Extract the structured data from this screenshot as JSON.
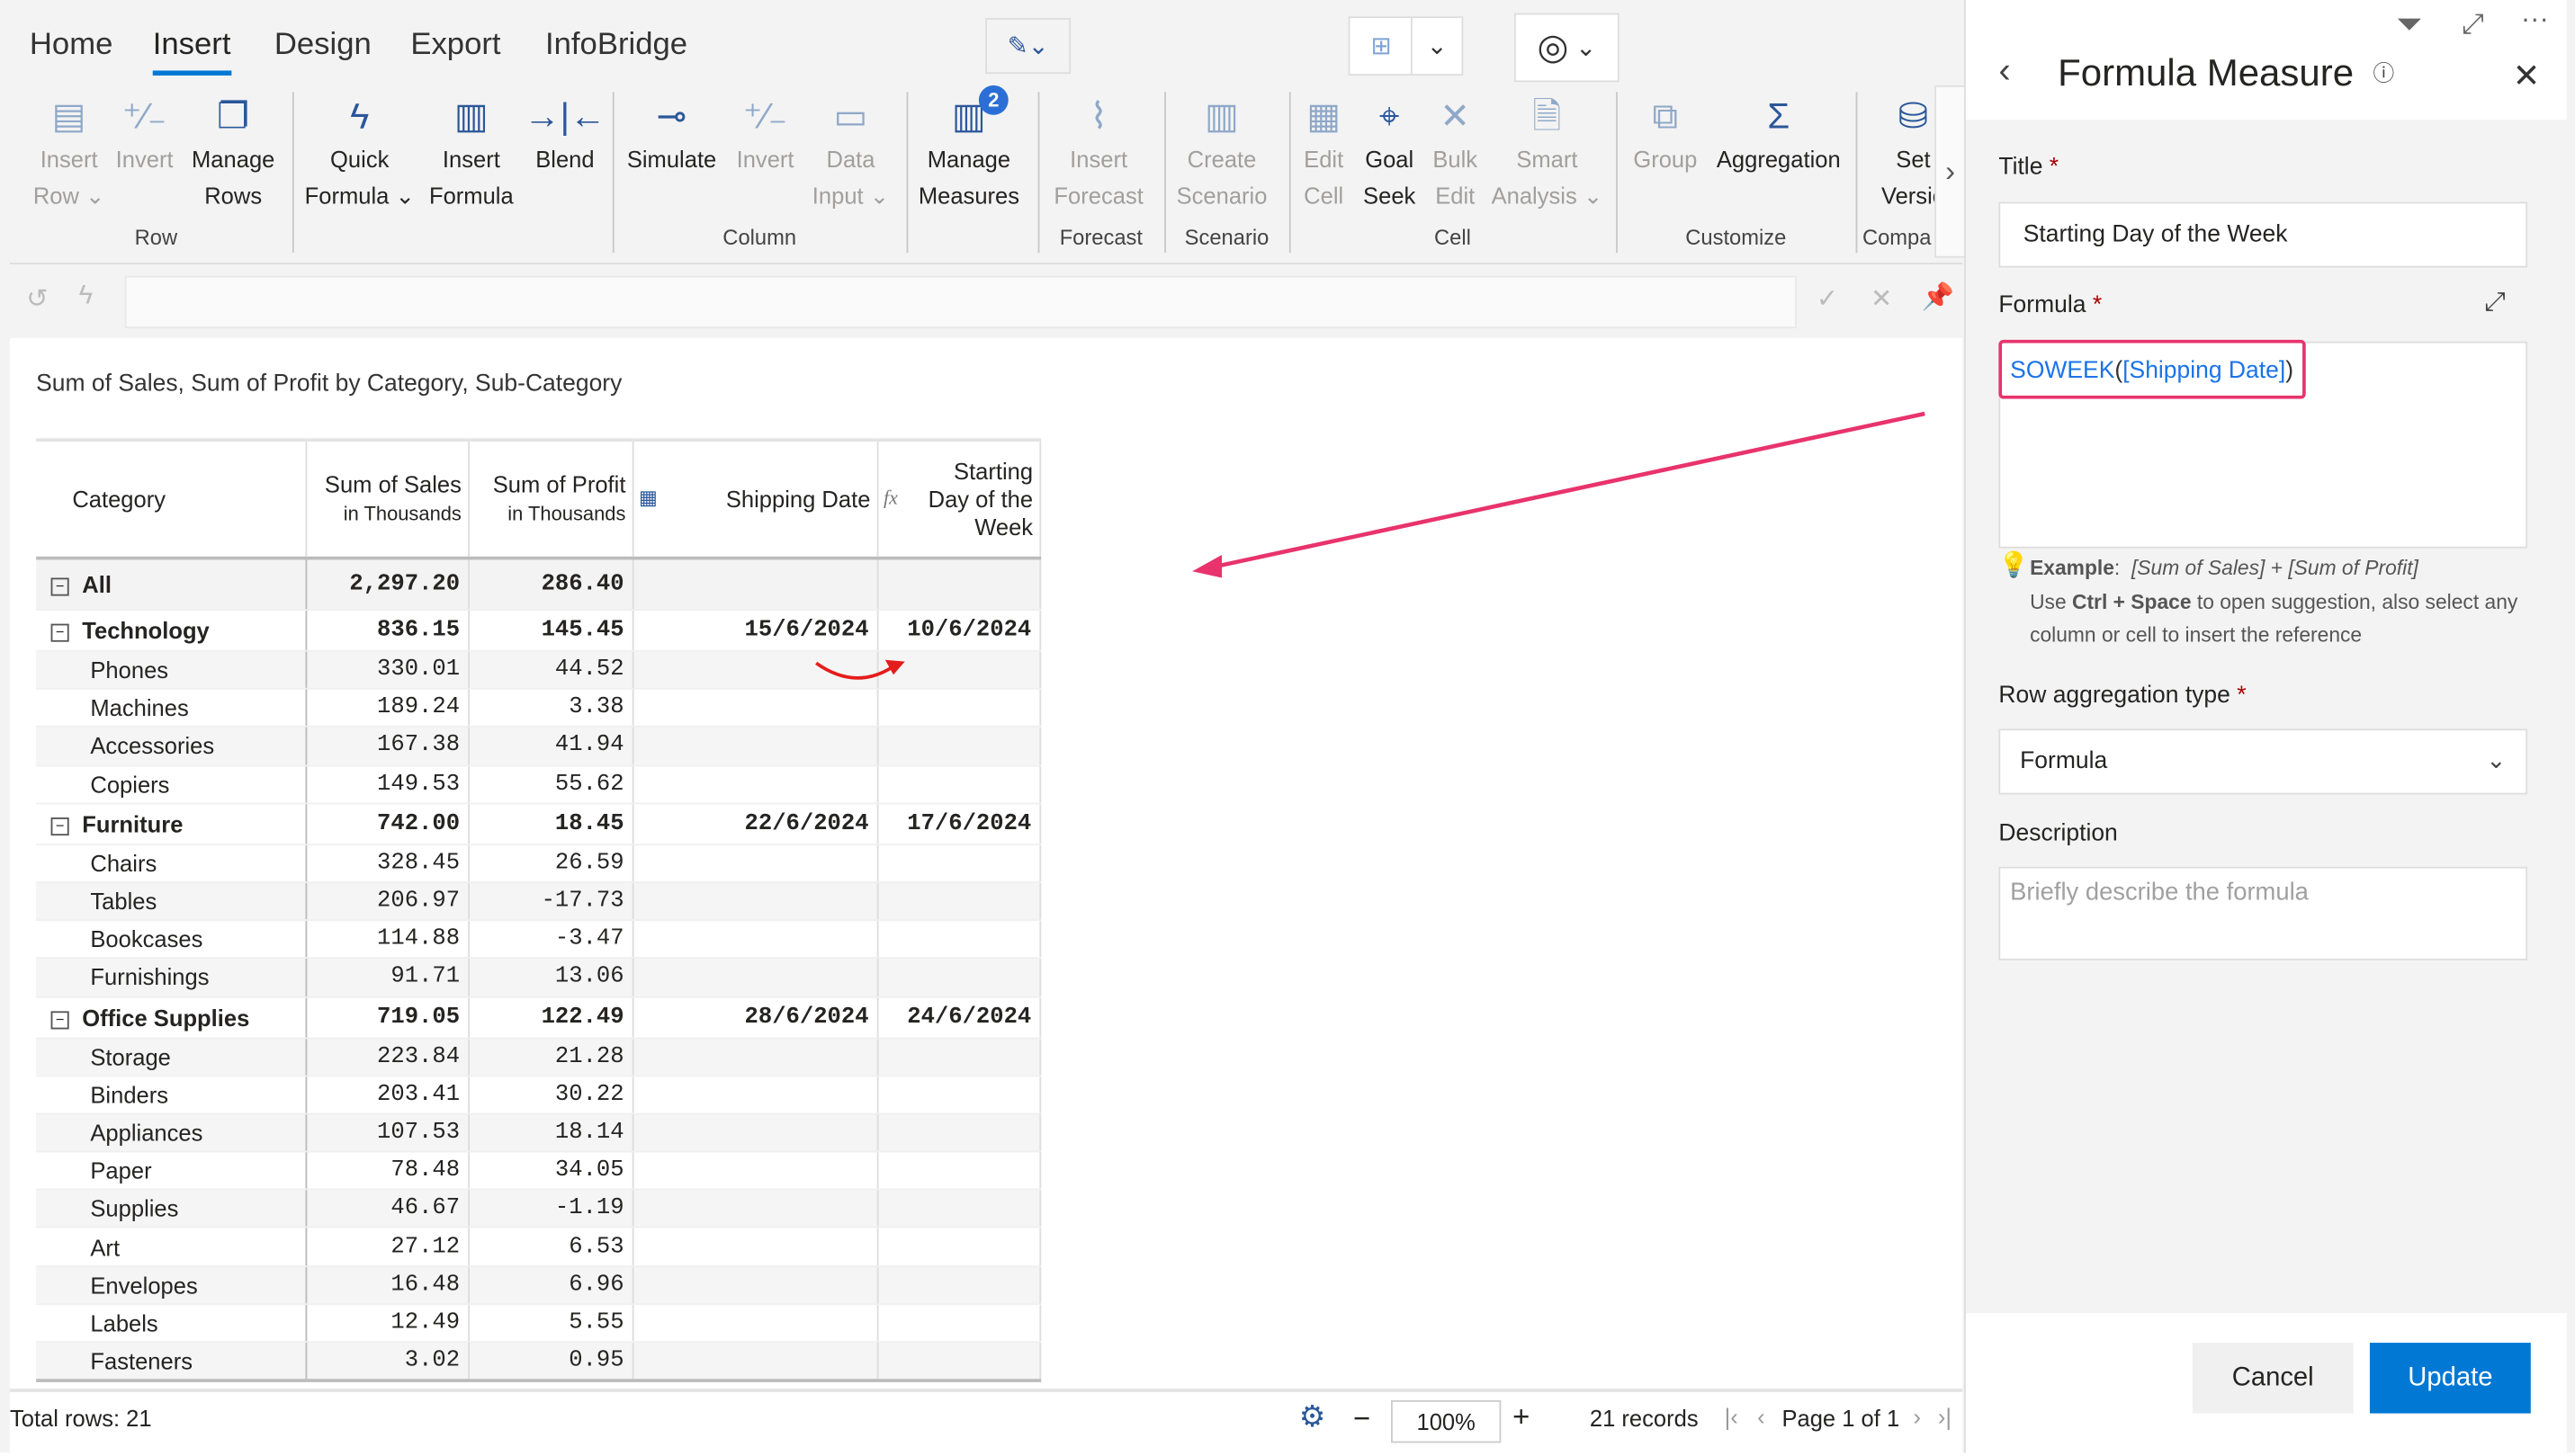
{
  "tabs": [
    {
      "label": "Home"
    },
    {
      "label": "Insert",
      "active": true
    },
    {
      "label": "Design"
    },
    {
      "label": "Export"
    },
    {
      "label": "InfoBridge"
    }
  ],
  "ribbon": {
    "groups": [
      {
        "label": "Row",
        "items": [
          {
            "l1": "Insert",
            "l2": "Row ⌄",
            "icon": "insert-row-icon",
            "g": "▤",
            "dis": true
          },
          {
            "l1": "Invert",
            "l2": "",
            "icon": "invert-icon",
            "g": "⁺∕₋",
            "dis": true
          },
          {
            "l1": "Manage",
            "l2": "Rows",
            "icon": "manage-rows-icon",
            "g": "❐"
          }
        ]
      },
      {
        "label": "",
        "items": [
          {
            "l1": "Quick",
            "l2": "Formula ⌄",
            "icon": "lightning-icon",
            "g": "ϟ"
          },
          {
            "l1": "Insert",
            "l2": "Formula",
            "icon": "calculator-icon",
            "g": "▥"
          },
          {
            "l1": "Blend",
            "l2": "",
            "icon": "blend-icon",
            "g": "→|←"
          }
        ]
      },
      {
        "label": "Column",
        "items": [
          {
            "l1": "Simulate",
            "l2": "",
            "icon": "simulate-icon",
            "g": "⊸"
          },
          {
            "l1": "Invert",
            "l2": "",
            "icon": "invert-icon",
            "g": "⁺∕₋",
            "dis": true
          },
          {
            "l1": "Data",
            "l2": "Input ⌄",
            "icon": "data-input-icon",
            "g": "▭",
            "dis": true
          }
        ]
      },
      {
        "label": "",
        "items": [
          {
            "l1": "Manage",
            "l2": "Measures",
            "icon": "manage-measures-icon",
            "g": "▥",
            "badge": "2"
          }
        ]
      },
      {
        "label": "Forecast",
        "items": [
          {
            "l1": "Insert",
            "l2": "Forecast",
            "icon": "forecast-icon",
            "g": "⌇",
            "dis": true
          }
        ]
      },
      {
        "label": "Scenario",
        "items": [
          {
            "l1": "Create",
            "l2": "Scenario",
            "icon": "scenario-icon",
            "g": "▥",
            "dis": true
          }
        ]
      },
      {
        "label": "Cell",
        "items": [
          {
            "l1": "Edit",
            "l2": "Cell",
            "icon": "edit-cell-icon",
            "g": "▦",
            "dis": true
          },
          {
            "l1": "Goal",
            "l2": "Seek",
            "icon": "goal-seek-icon",
            "g": "⌖"
          },
          {
            "l1": "Bulk",
            "l2": "Edit",
            "icon": "bulk-edit-icon",
            "g": "✕",
            "dis": true
          },
          {
            "l1": "Smart",
            "l2": "Analysis ⌄",
            "icon": "smart-analysis-icon",
            "g": "🗎",
            "dis": true
          }
        ]
      },
      {
        "label": "Customize",
        "items": [
          {
            "l1": "Group",
            "l2": "",
            "icon": "group-icon",
            "g": "⧉",
            "dis": true
          },
          {
            "l1": "Aggregation",
            "l2": "",
            "icon": "aggregation-icon",
            "g": "Σ"
          }
        ]
      },
      {
        "label": "Compa",
        "items": [
          {
            "l1": "Set",
            "l2": "Versio",
            "icon": "set-version-icon",
            "g": "⛁"
          }
        ]
      }
    ]
  },
  "visual": {
    "title": "Sum of Sales, Sum of Profit by Category, Sub-Category",
    "columns": {
      "category": "Category",
      "sales": "Sum of Sales",
      "sales_sub": "in Thousands",
      "profit": "Sum of Profit",
      "profit_sub": "in Thousands",
      "shipping": "Shipping Date",
      "starting": "Starting Day of the Week"
    },
    "rows": [
      {
        "name": "All",
        "sales": "2,297.20",
        "profit": "286.40",
        "ship": "",
        "start": "",
        "level": 0
      },
      {
        "name": "Technology",
        "sales": "836.15",
        "profit": "145.45",
        "ship": "15/6/2024",
        "start": "10/6/2024",
        "level": 1
      },
      {
        "name": "Phones",
        "sales": "330.01",
        "profit": "44.52",
        "ship": "",
        "start": "",
        "level": 2
      },
      {
        "name": "Machines",
        "sales": "189.24",
        "profit": "3.38",
        "ship": "",
        "start": "",
        "level": 2
      },
      {
        "name": "Accessories",
        "sales": "167.38",
        "profit": "41.94",
        "ship": "",
        "start": "",
        "level": 2
      },
      {
        "name": "Copiers",
        "sales": "149.53",
        "profit": "55.62",
        "ship": "",
        "start": "",
        "level": 2
      },
      {
        "name": "Furniture",
        "sales": "742.00",
        "profit": "18.45",
        "ship": "22/6/2024",
        "start": "17/6/2024",
        "level": 1
      },
      {
        "name": "Chairs",
        "sales": "328.45",
        "profit": "26.59",
        "ship": "",
        "start": "",
        "level": 2
      },
      {
        "name": "Tables",
        "sales": "206.97",
        "profit": "-17.73",
        "ship": "",
        "start": "",
        "level": 2
      },
      {
        "name": "Bookcases",
        "sales": "114.88",
        "profit": "-3.47",
        "ship": "",
        "start": "",
        "level": 2
      },
      {
        "name": "Furnishings",
        "sales": "91.71",
        "profit": "13.06",
        "ship": "",
        "start": "",
        "level": 2
      },
      {
        "name": "Office Supplies",
        "sales": "719.05",
        "profit": "122.49",
        "ship": "28/6/2024",
        "start": "24/6/2024",
        "level": 1
      },
      {
        "name": "Storage",
        "sales": "223.84",
        "profit": "21.28",
        "ship": "",
        "start": "",
        "level": 2
      },
      {
        "name": "Binders",
        "sales": "203.41",
        "profit": "30.22",
        "ship": "",
        "start": "",
        "level": 2
      },
      {
        "name": "Appliances",
        "sales": "107.53",
        "profit": "18.14",
        "ship": "",
        "start": "",
        "level": 2
      },
      {
        "name": "Paper",
        "sales": "78.48",
        "profit": "34.05",
        "ship": "",
        "start": "",
        "level": 2
      },
      {
        "name": "Supplies",
        "sales": "46.67",
        "profit": "-1.19",
        "ship": "",
        "start": "",
        "level": 2
      },
      {
        "name": "Art",
        "sales": "27.12",
        "profit": "6.53",
        "ship": "",
        "start": "",
        "level": 2
      },
      {
        "name": "Envelopes",
        "sales": "16.48",
        "profit": "6.96",
        "ship": "",
        "start": "",
        "level": 2
      },
      {
        "name": "Labels",
        "sales": "12.49",
        "profit": "5.55",
        "ship": "",
        "start": "",
        "level": 2
      },
      {
        "name": "Fasteners",
        "sales": "3.02",
        "profit": "0.95",
        "ship": "",
        "start": "",
        "level": 2
      }
    ]
  },
  "footer": {
    "total_rows": "Total rows: 21",
    "zoom": "100%",
    "records": "21 records",
    "page": "Page 1 of 1"
  },
  "panel": {
    "title": "Formula Measure",
    "title_label": "Title",
    "title_value": "Starting Day of the Week",
    "formula_label": "Formula",
    "formula_fn": "SOWEEK",
    "formula_paren_open": "(",
    "formula_ref": "[Shipping Date]",
    "formula_paren_close": ")",
    "example_label": "Example",
    "example_value": "[Sum of Sales] + [Sum of Profit]",
    "hint_pre": "Use ",
    "hint_keys": "Ctrl + Space",
    "hint_post": " to open suggestion, also select any column or cell to insert the reference",
    "agg_label": "Row aggregation type",
    "agg_value": "Formula",
    "desc_label": "Description",
    "desc_placeholder": "Briefly describe the formula",
    "cancel": "Cancel",
    "update": "Update",
    "required_mark": "*"
  },
  "colors": {
    "accent": "#0078d4",
    "highlight": "#e8336d",
    "formula_text": "#1a73e8"
  }
}
